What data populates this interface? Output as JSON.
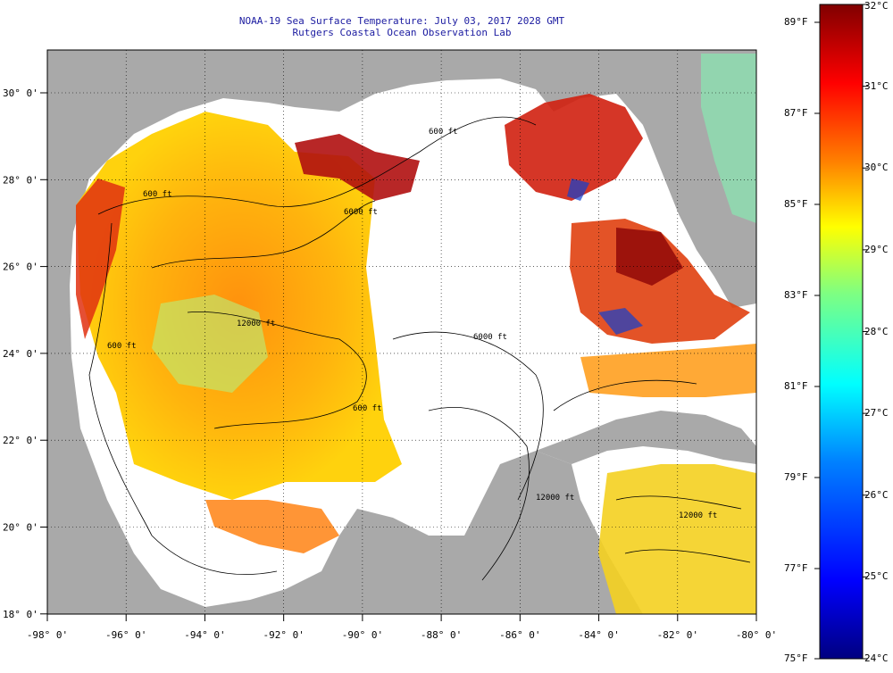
{
  "title": {
    "line1": "NOAA-19 Sea Surface Temperature:  July 03, 2017 2028 GMT",
    "line2": "Rutgers Coastal Ocean Observation Lab"
  },
  "map": {
    "lon_ticks": [
      "-98° 0'",
      "-96° 0'",
      "-94° 0'",
      "-92° 0'",
      "-90° 0'",
      "-88° 0'",
      "-86° 0'",
      "-84° 0'",
      "-82° 0'",
      "-80° 0'"
    ],
    "lat_ticks": [
      "30° 0'",
      "28° 0'",
      "26° 0'",
      "24° 0'",
      "22° 0'",
      "20° 0'",
      "18° 0'"
    ],
    "contour_labels": [
      "600 ft",
      "6000 ft",
      "12000 ft",
      "6000 ft",
      "600 ft",
      "12000 ft",
      "600 ft",
      "600 ft",
      "12000 ft"
    ]
  },
  "colorbar": {
    "fahrenheit": [
      "89°F",
      "87°F",
      "85°F",
      "83°F",
      "81°F",
      "79°F",
      "77°F",
      "75°F"
    ],
    "celsius": [
      "32°C",
      "31°C",
      "30°C",
      "29°C",
      "28°C",
      "27°C",
      "26°C",
      "25°C",
      "24°C"
    ]
  },
  "colors": {
    "land": "#a9a9a9",
    "no_data": "#ffffff",
    "title": "#1a1aa0",
    "scale": [
      "#000080",
      "#0000ff",
      "#0080ff",
      "#00ffff",
      "#80ff80",
      "#ffff00",
      "#ff8000",
      "#ff0000",
      "#800000"
    ]
  }
}
